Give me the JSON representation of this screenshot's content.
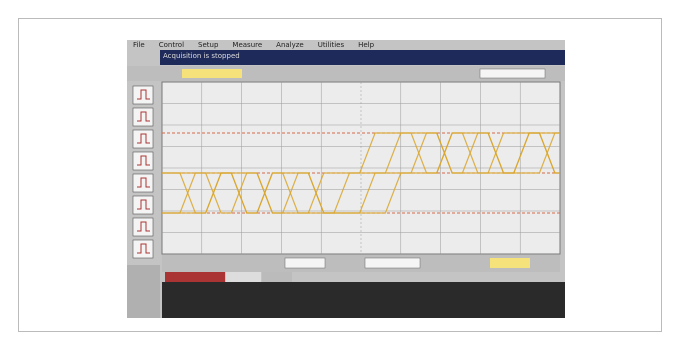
{
  "menu": [
    "File",
    "Control",
    "Setup",
    "Measure",
    "Analyze",
    "Utilities",
    "Help"
  ],
  "status": "Acquisition is stopped"
}
